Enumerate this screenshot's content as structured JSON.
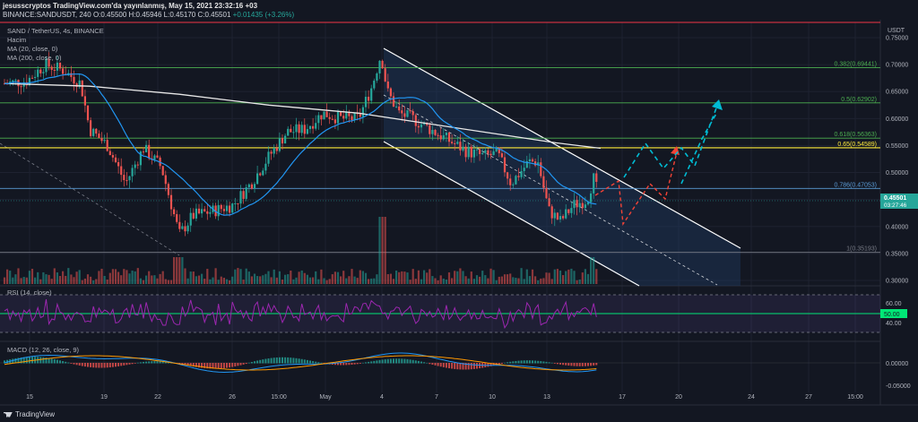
{
  "header": {
    "line1": "jesusscryptos TradingView.com'da yayınlanmış, May 15, 2021 23:32:16 +03",
    "symbol": "BINANCE:SANDUSDT, 240",
    "ohlc": "O:0.45500 H:0.45946 L:0.45170 C:0.45501",
    "change": "+0.01435 (+3.26%)"
  },
  "legend": {
    "title": "SAND / TetherUS, 4s, BINANCE",
    "volume": "Hacim",
    "ma20": "MA (20, close, 0)",
    "ma200": "MA (200, close, 0)",
    "rsi": "RSI (14, close)",
    "macd": "MACD (12, 26, close, 9)"
  },
  "price_tag": {
    "price": "0.45501",
    "countdown": "03:27:46"
  },
  "rsi_tag": "50.00",
  "brand": "TradingView",
  "colors": {
    "bg": "#131722",
    "up": "#26a69a",
    "down": "#ef5350",
    "ma20": "#2196f3",
    "ma200": "#e8e8e8",
    "rsi": "#9c27b0",
    "fib_green": "#4caf50",
    "fib_gold": "#ffeb3b",
    "fib_blue": "#5b9bd5",
    "fib_grey": "#787b86",
    "channel": "#ffffff",
    "arrow_up": "#00bcd4",
    "arrow_red": "#f44336"
  },
  "chart_data": {
    "type": "candlestick",
    "axis_currency": "USDT",
    "yticks": [
      "0.75000",
      "0.70000",
      "0.65000",
      "0.60000",
      "0.55000",
      "0.50000",
      "0.45000",
      "0.40000",
      "0.35000",
      "0.30000"
    ],
    "xticks": [
      "15",
      "19",
      "22",
      "26",
      "15:00",
      "May",
      "4",
      "7",
      "10",
      "13",
      "17",
      "20",
      "24",
      "27",
      "15:00"
    ],
    "fib_levels": [
      {
        "label": "0.382(0.69441)",
        "value": 0.69441,
        "color": "fib_green"
      },
      {
        "label": "0.5(0.62902)",
        "value": 0.62902,
        "color": "fib_green"
      },
      {
        "label": "0.618(0.56363)",
        "value": 0.56363,
        "color": "fib_green"
      },
      {
        "label": "0.65(0.54589)",
        "value": 0.54589,
        "color": "fib_gold"
      },
      {
        "label": "0.786(0.47053)",
        "value": 0.47053,
        "color": "fib_blue"
      },
      {
        "label": "1(0.35193)",
        "value": 0.35193,
        "color": "fib_grey"
      }
    ],
    "rsi": {
      "yticks": [
        "60.00",
        "40.00"
      ],
      "upper": 70,
      "lower": 30,
      "mid": 50
    },
    "macd": {
      "yticks": [
        "0.00000",
        "-0.05000"
      ]
    }
  }
}
